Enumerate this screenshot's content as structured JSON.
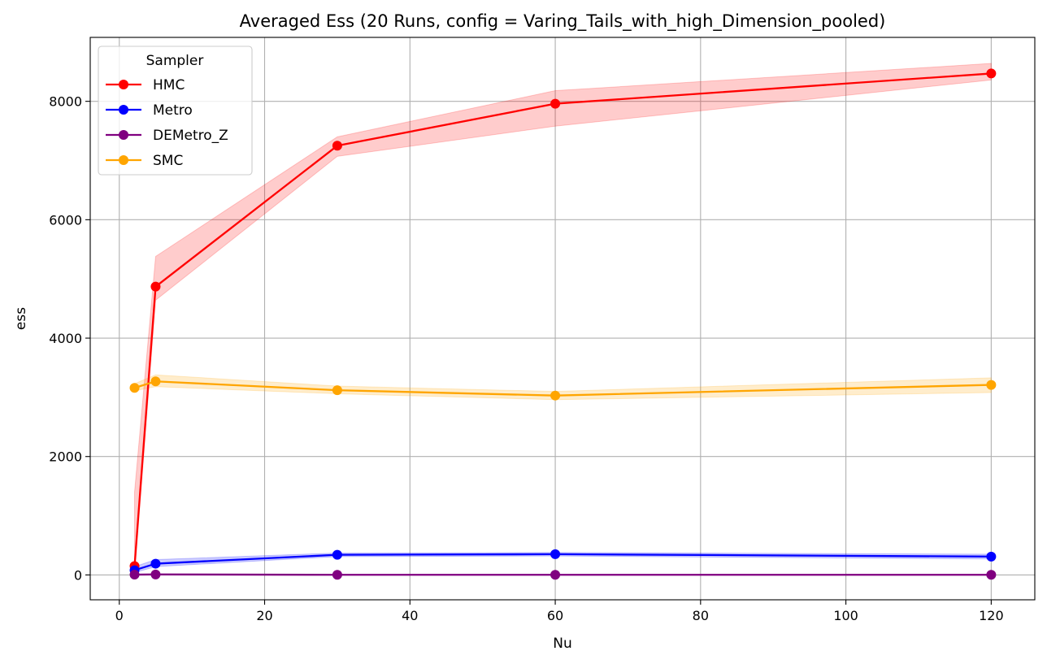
{
  "chart_data": {
    "type": "line",
    "title": "Averaged Ess (20 Runs, config = Varing_Tails_with_high_Dimension_pooled)",
    "xlabel": "Nu",
    "ylabel": "ess",
    "xlim": [
      -4,
      126
    ],
    "ylim": [
      -420,
      9080
    ],
    "x_ticks": [
      0,
      20,
      40,
      60,
      80,
      100,
      120
    ],
    "y_ticks": [
      0,
      2000,
      4000,
      6000,
      8000
    ],
    "grid": true,
    "legend": {
      "title": "Sampler",
      "placement": "upper-left"
    },
    "x": [
      2.1,
      5,
      30,
      60,
      120
    ],
    "series": [
      {
        "name": "HMC",
        "color": "#ff0000",
        "values": [
          150,
          4870,
          7250,
          7960,
          8470
        ],
        "band_low": [
          0,
          4640,
          7070,
          7580,
          8360
        ],
        "band_high": [
          1400,
          5380,
          7400,
          8180,
          8640
        ]
      },
      {
        "name": "Metro",
        "color": "#0000ff",
        "values": [
          80,
          190,
          340,
          350,
          310
        ],
        "band_low": [
          40,
          140,
          310,
          320,
          270
        ],
        "band_high": [
          140,
          260,
          370,
          380,
          350
        ]
      },
      {
        "name": "DEMetro_Z",
        "color": "#800080",
        "values": [
          5,
          8,
          2,
          2,
          2
        ],
        "band_low": [
          0,
          0,
          0,
          0,
          0
        ],
        "band_high": [
          15,
          20,
          10,
          10,
          10
        ]
      },
      {
        "name": "SMC",
        "color": "#ffa500",
        "values": [
          3160,
          3270,
          3120,
          3030,
          3210
        ],
        "band_low": [
          3110,
          3180,
          3060,
          2960,
          3080
        ],
        "band_high": [
          3230,
          3380,
          3190,
          3100,
          3330
        ]
      }
    ]
  }
}
